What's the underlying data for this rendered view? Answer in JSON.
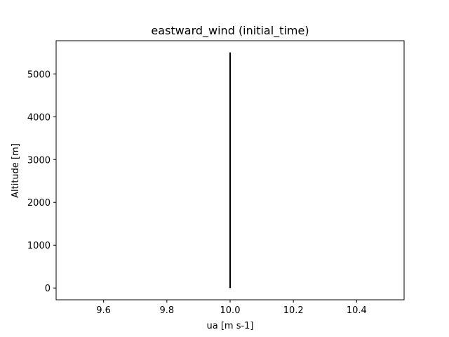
{
  "chart_data": {
    "type": "line",
    "title": "eastward_wind (initial_time)",
    "xlabel": "ua [m s-1]",
    "ylabel": "Altitude [m]",
    "xlim": [
      9.45,
      10.55
    ],
    "ylim": [
      -275,
      5775
    ],
    "xticks": [
      9.6,
      9.8,
      10.0,
      10.2,
      10.4
    ],
    "xtick_labels": [
      "9.6",
      "9.8",
      "10.0",
      "10.2",
      "10.4"
    ],
    "yticks": [
      0,
      1000,
      2000,
      3000,
      4000,
      5000
    ],
    "ytick_labels": [
      "0",
      "1000",
      "2000",
      "3000",
      "4000",
      "5000"
    ],
    "grid": false,
    "series": [
      {
        "color": "#000000",
        "x": [
          10.0,
          10.0
        ],
        "y": [
          0,
          5500
        ]
      }
    ]
  }
}
